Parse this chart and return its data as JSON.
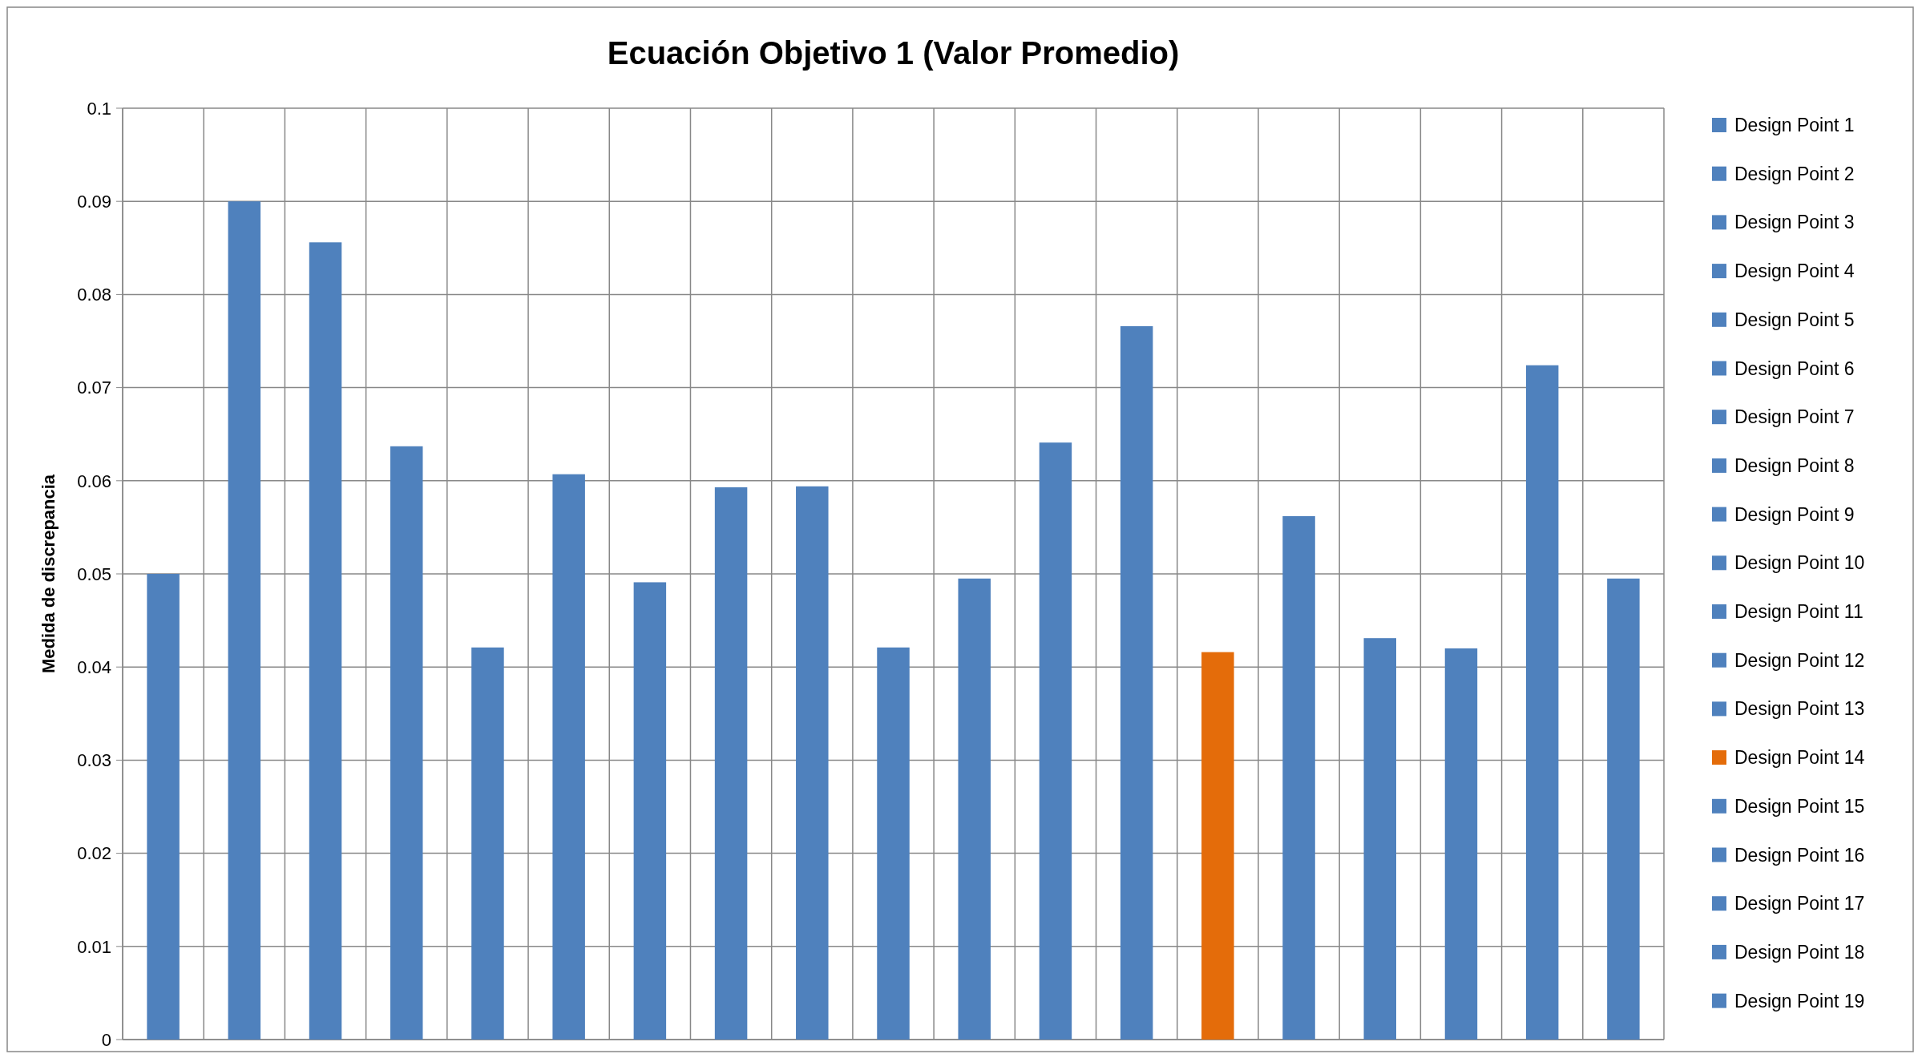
{
  "chart_data": {
    "type": "bar",
    "title": "Ecuación Objetivo 1 (Valor Promedio)",
    "ylabel": "Medida de discrepancia",
    "categories": [
      null,
      null,
      null,
      null,
      null,
      null,
      null,
      null,
      null,
      null,
      null,
      null,
      null,
      null,
      null,
      null,
      null,
      null,
      null
    ],
    "ylim": [
      0,
      0.1
    ],
    "yticks": [
      0,
      0.01,
      0.02,
      0.03,
      0.04,
      0.05,
      0.06,
      0.07,
      0.08,
      0.09,
      0.1
    ],
    "grid": true,
    "legend": "right",
    "series": [
      {
        "name": "Design Point 1",
        "color": "#4f81bd",
        "values": [
          0.05,
          null,
          null,
          null,
          null,
          null,
          null,
          null,
          null,
          null,
          null,
          null,
          null,
          null,
          null,
          null,
          null,
          null,
          null
        ]
      },
      {
        "name": "Design Point 2",
        "color": "#4f81bd",
        "values": [
          null,
          0.09,
          null,
          null,
          null,
          null,
          null,
          null,
          null,
          null,
          null,
          null,
          null,
          null,
          null,
          null,
          null,
          null,
          null
        ]
      },
      {
        "name": "Design Point 3",
        "color": "#4f81bd",
        "values": [
          null,
          null,
          0.0856,
          null,
          null,
          null,
          null,
          null,
          null,
          null,
          null,
          null,
          null,
          null,
          null,
          null,
          null,
          null,
          null
        ]
      },
      {
        "name": "Design Point 4",
        "color": "#4f81bd",
        "values": [
          null,
          null,
          null,
          0.0637,
          null,
          null,
          null,
          null,
          null,
          null,
          null,
          null,
          null,
          null,
          null,
          null,
          null,
          null,
          null
        ]
      },
      {
        "name": "Design Point 5",
        "color": "#4f81bd",
        "values": [
          null,
          null,
          null,
          null,
          0.0421,
          null,
          null,
          null,
          null,
          null,
          null,
          null,
          null,
          null,
          null,
          null,
          null,
          null,
          null
        ]
      },
      {
        "name": "Design Point 6",
        "color": "#4f81bd",
        "values": [
          null,
          null,
          null,
          null,
          null,
          0.0607,
          null,
          null,
          null,
          null,
          null,
          null,
          null,
          null,
          null,
          null,
          null,
          null,
          null
        ]
      },
      {
        "name": "Design Point 7",
        "color": "#4f81bd",
        "values": [
          null,
          null,
          null,
          null,
          null,
          null,
          0.0491,
          null,
          null,
          null,
          null,
          null,
          null,
          null,
          null,
          null,
          null,
          null,
          null
        ]
      },
      {
        "name": "Design Point 8",
        "color": "#4f81bd",
        "values": [
          null,
          null,
          null,
          null,
          null,
          null,
          null,
          0.0593,
          null,
          null,
          null,
          null,
          null,
          null,
          null,
          null,
          null,
          null,
          null
        ]
      },
      {
        "name": "Design Point 9",
        "color": "#4f81bd",
        "values": [
          null,
          null,
          null,
          null,
          null,
          null,
          null,
          null,
          0.0594,
          null,
          null,
          null,
          null,
          null,
          null,
          null,
          null,
          null,
          null
        ]
      },
      {
        "name": "Design Point 10",
        "color": "#4f81bd",
        "values": [
          null,
          null,
          null,
          null,
          null,
          null,
          null,
          null,
          null,
          0.0421,
          null,
          null,
          null,
          null,
          null,
          null,
          null,
          null,
          null
        ]
      },
      {
        "name": "Design Point 11",
        "color": "#4f81bd",
        "values": [
          null,
          null,
          null,
          null,
          null,
          null,
          null,
          null,
          null,
          null,
          0.0495,
          null,
          null,
          null,
          null,
          null,
          null,
          null,
          null
        ]
      },
      {
        "name": "Design Point 12",
        "color": "#4f81bd",
        "values": [
          null,
          null,
          null,
          null,
          null,
          null,
          null,
          null,
          null,
          null,
          null,
          0.0641,
          null,
          null,
          null,
          null,
          null,
          null,
          null
        ]
      },
      {
        "name": "Design Point 13",
        "color": "#4f81bd",
        "values": [
          null,
          null,
          null,
          null,
          null,
          null,
          null,
          null,
          null,
          null,
          null,
          null,
          0.0766,
          null,
          null,
          null,
          null,
          null,
          null
        ]
      },
      {
        "name": "Design Point 14",
        "color": "#e46c0a",
        "values": [
          null,
          null,
          null,
          null,
          null,
          null,
          null,
          null,
          null,
          null,
          null,
          null,
          null,
          0.0416,
          null,
          null,
          null,
          null,
          null
        ]
      },
      {
        "name": "Design Point 15",
        "color": "#4f81bd",
        "values": [
          null,
          null,
          null,
          null,
          null,
          null,
          null,
          null,
          null,
          null,
          null,
          null,
          null,
          null,
          0.0562,
          null,
          null,
          null,
          null
        ]
      },
      {
        "name": "Design Point 16",
        "color": "#4f81bd",
        "values": [
          null,
          null,
          null,
          null,
          null,
          null,
          null,
          null,
          null,
          null,
          null,
          null,
          null,
          null,
          null,
          0.0431,
          null,
          null,
          null
        ]
      },
      {
        "name": "Design Point 17",
        "color": "#4f81bd",
        "values": [
          null,
          null,
          null,
          null,
          null,
          null,
          null,
          null,
          null,
          null,
          null,
          null,
          null,
          null,
          null,
          null,
          0.042,
          null,
          null
        ]
      },
      {
        "name": "Design Point 18",
        "color": "#4f81bd",
        "values": [
          null,
          null,
          null,
          null,
          null,
          null,
          null,
          null,
          null,
          null,
          null,
          null,
          null,
          null,
          null,
          null,
          null,
          0.0724,
          null
        ]
      },
      {
        "name": "Design Point 19",
        "color": "#4f81bd",
        "values": [
          null,
          null,
          null,
          null,
          null,
          null,
          null,
          null,
          null,
          null,
          null,
          null,
          null,
          null,
          null,
          null,
          null,
          null,
          0.0495
        ]
      }
    ]
  }
}
